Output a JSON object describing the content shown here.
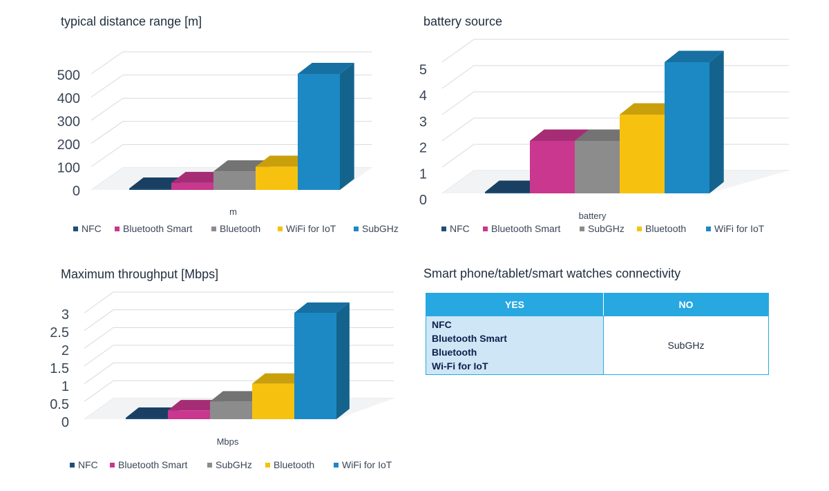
{
  "colors": {
    "navy": "#1f4e79",
    "magenta": "#c9378f",
    "gray": "#8c8c8c",
    "yellow": "#f6c20f",
    "blue": "#1c89c4",
    "header": "#27a8e0",
    "cell": "#cfe6f7"
  },
  "chart_data": [
    {
      "type": "bar",
      "title": "typical distance range [m]",
      "xlabel": "m",
      "ylim": [
        0,
        500
      ],
      "yticks": [
        "0",
        "100",
        "200",
        "300",
        "400",
        "500"
      ],
      "series": [
        {
          "name": "NFC",
          "values": [
            0.1
          ],
          "color": "#1f4e79"
        },
        {
          "name": "Bluetooth Smart",
          "values": [
            30
          ],
          "color": "#c9378f"
        },
        {
          "name": "Bluetooth",
          "values": [
            80
          ],
          "color": "#8c8c8c"
        },
        {
          "name": "WiFi for IoT",
          "values": [
            100
          ],
          "color": "#f6c20f"
        },
        {
          "name": "SubGHz",
          "values": [
            500
          ],
          "color": "#1c89c4"
        }
      ],
      "legend_position": "bottom"
    },
    {
      "type": "bar",
      "title": "battery source",
      "xlabel": "battery",
      "ylim": [
        0,
        5
      ],
      "yticks": [
        "0",
        "1",
        "2",
        "3",
        "4",
        "5"
      ],
      "series": [
        {
          "name": "NFC",
          "values": [
            0
          ],
          "color": "#1f4e79"
        },
        {
          "name": "Bluetooth Smart",
          "values": [
            2
          ],
          "color": "#c9378f"
        },
        {
          "name": "SubGHz",
          "values": [
            2
          ],
          "color": "#8c8c8c"
        },
        {
          "name": "Bluetooth",
          "values": [
            3
          ],
          "color": "#f6c20f"
        },
        {
          "name": "WiFi for IoT",
          "values": [
            5
          ],
          "color": "#1c89c4"
        }
      ],
      "legend_position": "bottom"
    },
    {
      "type": "bar",
      "title": "Maximum throughput [Mbps]",
      "xlabel": "Mbps",
      "ylim": [
        0,
        3
      ],
      "yticks": [
        "0",
        "0.5",
        "1",
        "1.5",
        "2",
        "2.5",
        "3"
      ],
      "series": [
        {
          "name": "NFC",
          "values": [
            0.01
          ],
          "color": "#1f4e79"
        },
        {
          "name": "Bluetooth Smart",
          "values": [
            0.25
          ],
          "color": "#c9378f"
        },
        {
          "name": "SubGHz",
          "values": [
            0.5
          ],
          "color": "#8c8c8c"
        },
        {
          "name": "Bluetooth",
          "values": [
            1
          ],
          "color": "#f6c20f"
        },
        {
          "name": "WiFi for IoT",
          "values": [
            3
          ],
          "color": "#1c89c4"
        }
      ],
      "legend_position": "bottom"
    }
  ],
  "connectivity": {
    "title": "Smart phone/tablet/smart watches connectivity",
    "headers": {
      "yes": "YES",
      "no": "NO"
    },
    "yes_items": [
      "NFC",
      "Bluetooth Smart",
      "Bluetooth",
      "Wi-Fi for IoT"
    ],
    "no_items": [
      "SubGHz"
    ]
  }
}
